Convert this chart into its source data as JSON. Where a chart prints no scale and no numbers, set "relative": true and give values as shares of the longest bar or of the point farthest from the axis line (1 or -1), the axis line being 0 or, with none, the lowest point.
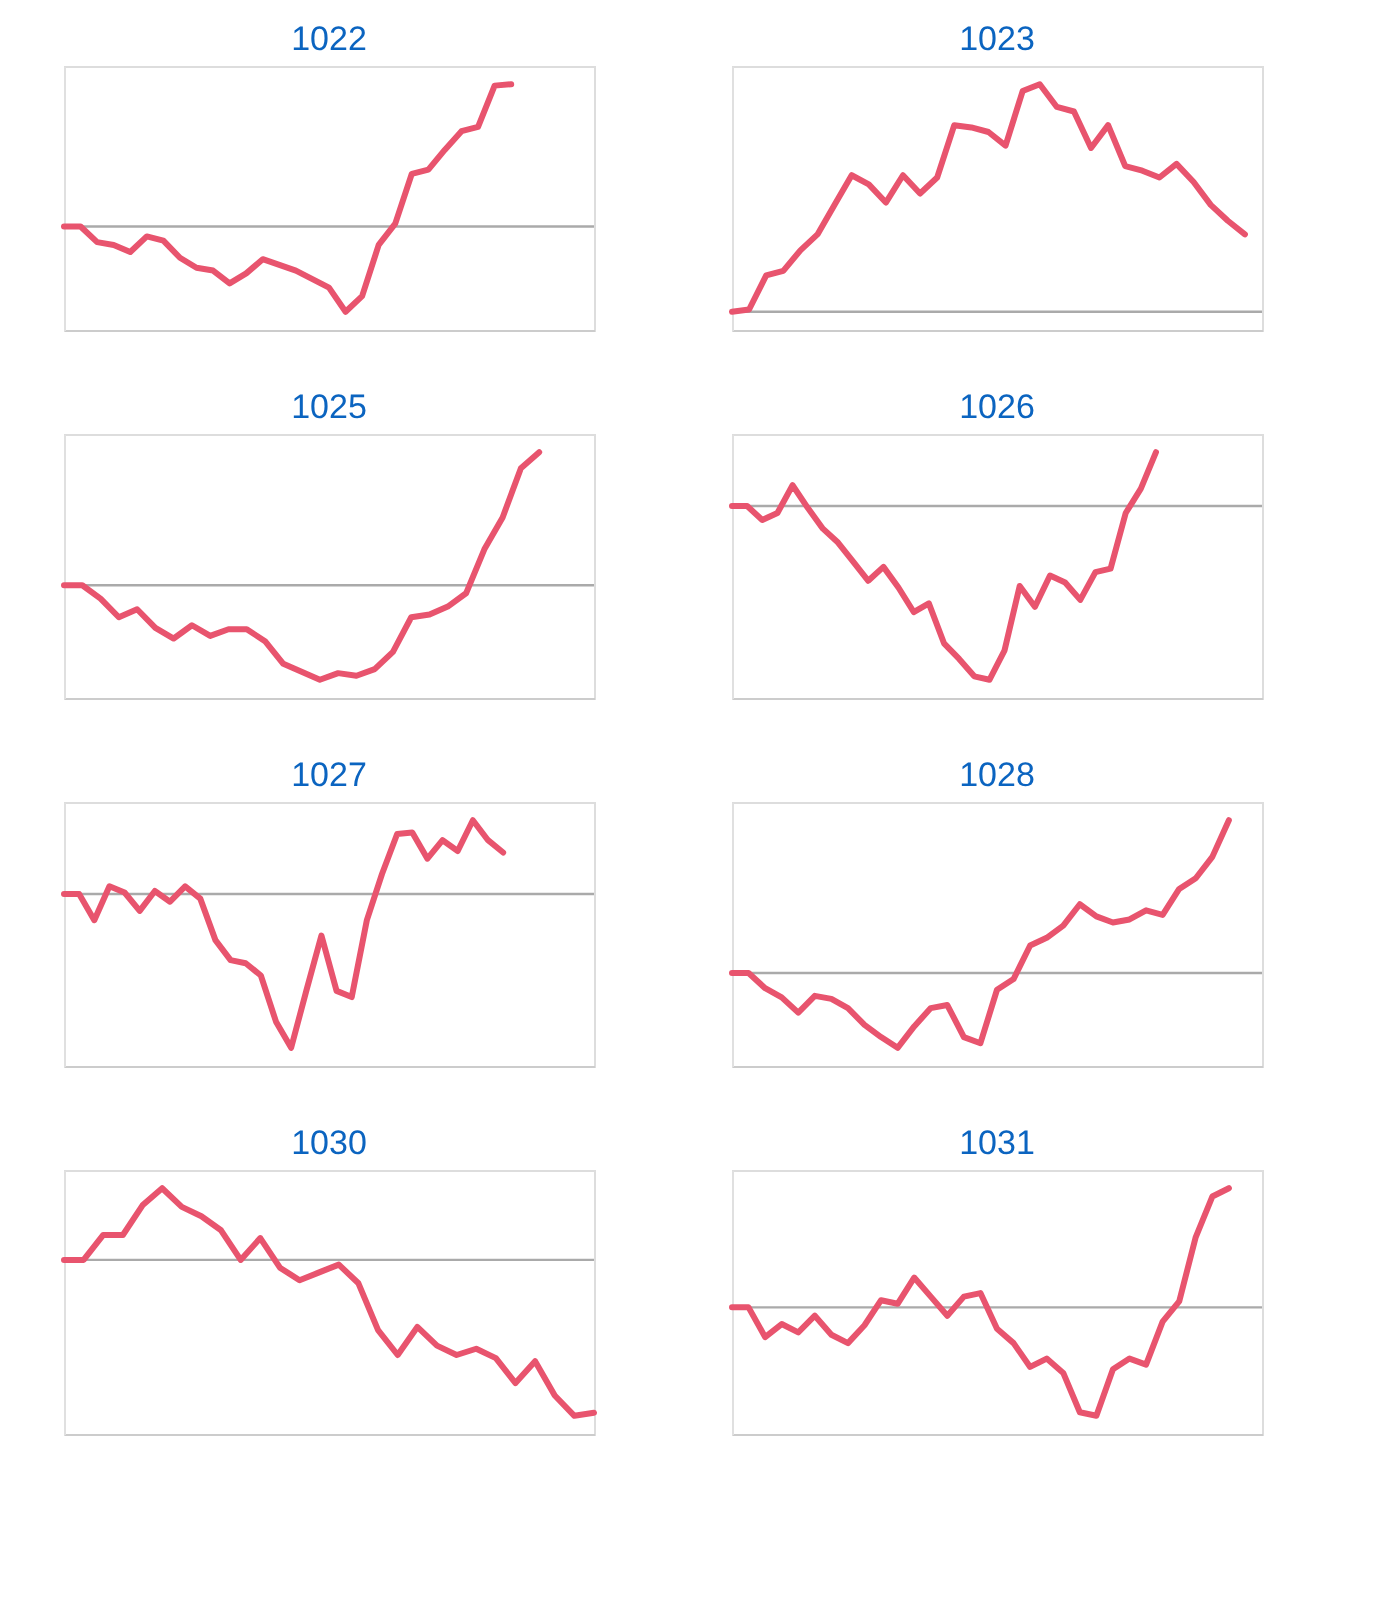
{
  "chart_data": [
    {
      "type": "line",
      "title": "1022",
      "relative": true,
      "tick_labels": false,
      "categories": [
        null,
        null,
        null,
        null,
        null,
        null,
        null,
        null,
        null,
        null,
        null,
        null,
        null,
        null,
        null,
        null,
        null,
        null,
        null,
        null,
        null,
        null,
        null,
        null,
        null,
        null,
        null,
        null,
        null,
        null,
        null,
        null,
        null
      ],
      "ref_lines": [
        {
          "axis": "y",
          "value": 0,
          "color": "#aaaaaa"
        }
      ],
      "series": [
        {
          "color": "#e8546e",
          "values": [
            0,
            0,
            -0.11,
            -0.13,
            -0.18,
            -0.07,
            -0.1,
            -0.22,
            -0.29,
            -0.31,
            -0.4,
            -0.33,
            -0.23,
            -0.27,
            -0.31,
            -0.37,
            -0.43,
            -0.6,
            -0.49,
            -0.13,
            0.02,
            0.37,
            0.4,
            0.54,
            0.67,
            0.7,
            0.99,
            1.0,
            null,
            null,
            null,
            null,
            null
          ]
        }
      ]
    },
    {
      "type": "line",
      "title": "1023",
      "relative": true,
      "tick_labels": false,
      "categories": [
        null,
        null,
        null,
        null,
        null,
        null,
        null,
        null,
        null,
        null,
        null,
        null,
        null,
        null,
        null,
        null,
        null,
        null,
        null,
        null,
        null,
        null,
        null,
        null,
        null,
        null,
        null,
        null,
        null,
        null,
        null,
        null
      ],
      "ref_lines": [
        {
          "axis": "y",
          "value": 0,
          "color": "#aaaaaa"
        }
      ],
      "series": [
        {
          "color": "#e8546e",
          "values": [
            0,
            0.01,
            0.16,
            0.18,
            0.27,
            0.34,
            0.47,
            0.6,
            0.56,
            0.48,
            0.6,
            0.52,
            0.59,
            0.82,
            0.81,
            0.79,
            0.73,
            0.97,
            1.0,
            0.9,
            0.88,
            0.72,
            0.82,
            0.64,
            0.62,
            0.59,
            0.65,
            0.57,
            0.47,
            0.4,
            0.34,
            null
          ]
        }
      ]
    },
    {
      "type": "line",
      "title": "1025",
      "relative": true,
      "tick_labels": false,
      "categories": [
        null,
        null,
        null,
        null,
        null,
        null,
        null,
        null,
        null,
        null,
        null,
        null,
        null,
        null,
        null,
        null,
        null,
        null,
        null,
        null,
        null,
        null,
        null,
        null,
        null,
        null,
        null,
        null,
        null,
        null
      ],
      "ref_lines": [
        {
          "axis": "y",
          "value": 0,
          "color": "#aaaaaa"
        }
      ],
      "series": [
        {
          "color": "#e8546e",
          "values": [
            0,
            0,
            -0.1,
            -0.24,
            -0.18,
            -0.32,
            -0.4,
            -0.3,
            -0.38,
            -0.33,
            -0.33,
            -0.42,
            -0.59,
            -0.65,
            -0.71,
            -0.66,
            -0.68,
            -0.63,
            -0.5,
            -0.24,
            -0.22,
            -0.16,
            -0.06,
            0.27,
            0.51,
            0.88,
            1.0,
            null,
            null,
            null
          ]
        }
      ]
    },
    {
      "type": "line",
      "title": "1026",
      "relative": true,
      "tick_labels": false,
      "categories": [
        null,
        null,
        null,
        null,
        null,
        null,
        null,
        null,
        null,
        null,
        null,
        null,
        null,
        null,
        null,
        null,
        null,
        null,
        null,
        null,
        null,
        null,
        null,
        null,
        null,
        null,
        null,
        null,
        null,
        null,
        null,
        null,
        null,
        null,
        null,
        null
      ],
      "ref_lines": [
        {
          "axis": "y",
          "value": 0,
          "color": "#aaaaaa"
        }
      ],
      "series": [
        {
          "color": "#e8546e",
          "values": [
            0,
            0,
            -0.08,
            -0.04,
            0.12,
            -0.01,
            -0.13,
            -0.21,
            -0.32,
            -0.43,
            -0.35,
            -0.47,
            -0.61,
            -0.56,
            -0.79,
            -0.88,
            -0.98,
            -1.0,
            -0.83,
            -0.46,
            -0.58,
            -0.4,
            -0.44,
            -0.54,
            -0.38,
            -0.36,
            -0.04,
            0.1,
            0.31,
            null,
            null,
            null,
            null,
            null,
            null,
            null
          ]
        }
      ]
    },
    {
      "type": "line",
      "title": "1027",
      "relative": true,
      "tick_labels": false,
      "categories": [
        null,
        null,
        null,
        null,
        null,
        null,
        null,
        null,
        null,
        null,
        null,
        null,
        null,
        null,
        null,
        null,
        null,
        null,
        null,
        null,
        null,
        null,
        null,
        null,
        null,
        null,
        null,
        null,
        null,
        null,
        null,
        null,
        null,
        null,
        null,
        null
      ],
      "ref_lines": [
        {
          "axis": "y",
          "value": 0,
          "color": "#aaaaaa"
        }
      ],
      "series": [
        {
          "color": "#e8546e",
          "values": [
            0,
            0,
            -0.17,
            0.05,
            0.01,
            -0.11,
            0.02,
            -0.05,
            0.05,
            -0.03,
            -0.3,
            -0.43,
            -0.45,
            -0.53,
            -0.83,
            -1.0,
            -0.63,
            -0.27,
            -0.63,
            -0.67,
            -0.17,
            0.13,
            0.39,
            0.4,
            0.23,
            0.35,
            0.28,
            0.48,
            0.35,
            0.27,
            null,
            null,
            null,
            null,
            null,
            null
          ]
        }
      ]
    },
    {
      "type": "line",
      "title": "1028",
      "relative": true,
      "tick_labels": false,
      "categories": [
        null,
        null,
        null,
        null,
        null,
        null,
        null,
        null,
        null,
        null,
        null,
        null,
        null,
        null,
        null,
        null,
        null,
        null,
        null,
        null,
        null,
        null,
        null,
        null,
        null,
        null,
        null,
        null,
        null,
        null,
        null,
        null,
        null
      ],
      "ref_lines": [
        {
          "axis": "y",
          "value": 0,
          "color": "#aaaaaa"
        }
      ],
      "series": [
        {
          "color": "#e8546e",
          "values": [
            0,
            0,
            -0.1,
            -0.16,
            -0.26,
            -0.15,
            -0.17,
            -0.23,
            -0.34,
            -0.42,
            -0.49,
            -0.35,
            -0.23,
            -0.21,
            -0.42,
            -0.46,
            -0.11,
            -0.04,
            0.18,
            0.23,
            0.31,
            0.45,
            0.37,
            0.33,
            0.35,
            0.41,
            0.38,
            0.55,
            0.62,
            0.76,
            1.0,
            null,
            null
          ]
        }
      ]
    },
    {
      "type": "line",
      "title": "1030",
      "relative": true,
      "tick_labels": false,
      "categories": [
        null,
        null,
        null,
        null,
        null,
        null,
        null,
        null,
        null,
        null,
        null,
        null,
        null,
        null,
        null,
        null,
        null,
        null,
        null,
        null,
        null,
        null,
        null,
        null,
        null,
        null,
        null,
        null
      ],
      "ref_lines": [
        {
          "axis": "y",
          "value": 0,
          "color": "#aaaaaa"
        }
      ],
      "series": [
        {
          "color": "#e8546e",
          "values": [
            0,
            0,
            0.16,
            0.16,
            0.35,
            0.46,
            0.34,
            0.28,
            0.19,
            0,
            0.14,
            -0.05,
            -0.13,
            -0.08,
            -0.03,
            -0.15,
            -0.45,
            -0.61,
            -0.43,
            -0.55,
            -0.61,
            -0.57,
            -0.63,
            -0.79,
            -0.65,
            -0.87,
            -1.0,
            -0.98
          ]
        }
      ]
    },
    {
      "type": "line",
      "title": "1031",
      "relative": true,
      "tick_labels": false,
      "categories": [
        null,
        null,
        null,
        null,
        null,
        null,
        null,
        null,
        null,
        null,
        null,
        null,
        null,
        null,
        null,
        null,
        null,
        null,
        null,
        null,
        null,
        null,
        null,
        null,
        null,
        null,
        null,
        null,
        null,
        null,
        null,
        null,
        null
      ],
      "ref_lines": [
        {
          "axis": "y",
          "value": 0,
          "color": "#aaaaaa"
        }
      ],
      "series": [
        {
          "color": "#e8546e",
          "values": [
            0,
            0,
            -0.25,
            -0.14,
            -0.21,
            -0.07,
            -0.23,
            -0.3,
            -0.15,
            0.06,
            0.03,
            0.25,
            0.09,
            -0.07,
            0.09,
            0.12,
            -0.18,
            -0.3,
            -0.5,
            -0.43,
            -0.55,
            -0.88,
            -0.91,
            -0.52,
            -0.43,
            -0.48,
            -0.12,
            0.05,
            0.59,
            0.93,
            1.0,
            null,
            null
          ]
        }
      ]
    }
  ]
}
